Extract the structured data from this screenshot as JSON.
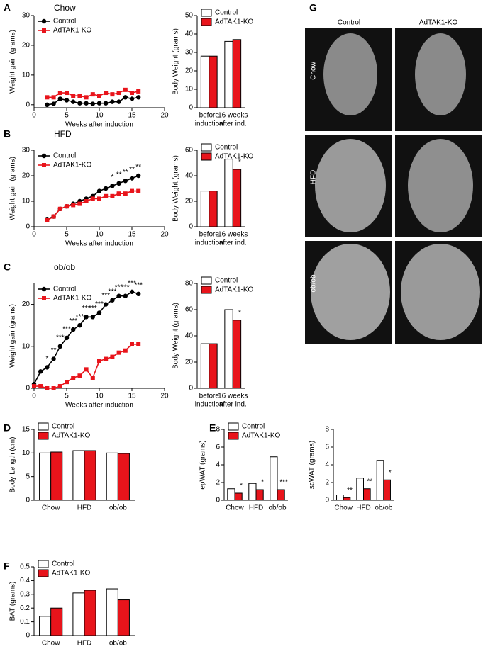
{
  "chart_data": [
    {
      "type": "line",
      "panel": "A",
      "title": "Chow",
      "xlabel": "Weeks after induction",
      "ylabel": "Weight gain (grams)",
      "x": [
        2,
        3,
        4,
        5,
        6,
        7,
        8,
        9,
        10,
        11,
        12,
        13,
        14,
        15,
        16
      ],
      "xlim": [
        0,
        20
      ],
      "xticks": [
        0,
        5,
        10,
        15,
        20
      ],
      "ylim": [
        -1,
        30
      ],
      "yticks": [
        0,
        10,
        20,
        30
      ],
      "legend": true,
      "series": [
        {
          "name": "Control",
          "color": "#000000",
          "marker": "circle",
          "values": [
            0,
            0.3,
            2,
            1.5,
            1,
            0.5,
            0.5,
            0.3,
            0.5,
            0.5,
            1,
            1,
            2.5,
            2,
            2.5
          ]
        },
        {
          "name": "AdTAK1-KO",
          "color": "#e8141b",
          "marker": "square",
          "values": [
            2.5,
            2.5,
            4,
            4,
            3,
            3,
            2.5,
            3.5,
            3,
            4,
            3.5,
            4,
            5,
            4,
            4.5
          ]
        }
      ]
    },
    {
      "type": "bar",
      "ylabel": "Body Weight (grams)",
      "categories": [
        [
          "before",
          "induction"
        ],
        [
          "16 weeks",
          "after ind."
        ]
      ],
      "ylim": [
        0,
        50
      ],
      "yticks": [
        0,
        10,
        20,
        30,
        40,
        50
      ],
      "legend": true,
      "series": [
        {
          "name": "Control",
          "color": "#ffffff",
          "values": [
            28,
            36
          ]
        },
        {
          "name": "AdTAK1-KO",
          "color": "#e8141b",
          "values": [
            28,
            37
          ]
        }
      ]
    },
    {
      "type": "line",
      "panel": "B",
      "title": "HFD",
      "xlabel": "Weeks after induction",
      "ylabel": "Weight gain (grams)",
      "x": [
        2,
        3,
        4,
        5,
        6,
        7,
        8,
        9,
        10,
        11,
        12,
        13,
        14,
        15,
        16
      ],
      "xlim": [
        0,
        20
      ],
      "xticks": [
        0,
        5,
        10,
        15,
        20
      ],
      "ylim": [
        0,
        30
      ],
      "yticks": [
        0,
        10,
        20,
        30
      ],
      "legend": true,
      "series": [
        {
          "name": "Control",
          "color": "#000000",
          "marker": "circle",
          "values": [
            3,
            4,
            7,
            8,
            9,
            10,
            11,
            12,
            14,
            15,
            16,
            17,
            18,
            19,
            20
          ],
          "significance": [
            null,
            null,
            null,
            null,
            null,
            null,
            null,
            null,
            null,
            null,
            "*",
            "**",
            "**",
            "**",
            "**"
          ]
        },
        {
          "name": "AdTAK1-KO",
          "color": "#e8141b",
          "marker": "square",
          "values": [
            2.5,
            4,
            7,
            8,
            8.5,
            9,
            10,
            11,
            11,
            12,
            12,
            13,
            13,
            14,
            14
          ]
        }
      ]
    },
    {
      "type": "bar",
      "ylabel": "Body Weight (grams)",
      "categories": [
        [
          "before",
          "induction"
        ],
        [
          "16 weeks",
          "after ind."
        ]
      ],
      "ylim": [
        0,
        60
      ],
      "yticks": [
        0,
        20,
        40,
        60
      ],
      "legend": true,
      "series": [
        {
          "name": "Control",
          "color": "#ffffff",
          "values": [
            28,
            53
          ]
        },
        {
          "name": "AdTAK1-KO",
          "color": "#e8141b",
          "values": [
            28,
            45
          ],
          "significance": [
            null,
            "*"
          ]
        }
      ]
    },
    {
      "type": "line",
      "panel": "C",
      "title": "ob/ob",
      "xlabel": "Weeks after induction",
      "ylabel": "Weight gain (grams)",
      "x": [
        0,
        1,
        2,
        3,
        4,
        5,
        6,
        7,
        8,
        9,
        10,
        11,
        12,
        13,
        14,
        15,
        16
      ],
      "xlim": [
        0,
        20
      ],
      "xticks": [
        0,
        5,
        10,
        15,
        20
      ],
      "ylim": [
        0,
        25
      ],
      "yticks": [
        0,
        10,
        20
      ],
      "legend": true,
      "series": [
        {
          "name": "Control",
          "color": "#000000",
          "marker": "circle",
          "values": [
            1,
            4,
            5,
            7,
            10,
            12,
            14,
            15,
            17,
            17,
            18,
            20,
            21,
            22,
            22,
            23,
            22.5
          ],
          "significance": [
            null,
            null,
            "*",
            "**",
            "***",
            "***",
            "***",
            "***",
            "***",
            "***",
            "***",
            "***",
            "***",
            "***",
            "***",
            "***",
            "***"
          ]
        },
        {
          "name": "AdTAK1-KO",
          "color": "#e8141b",
          "marker": "square",
          "values": [
            0.5,
            0.5,
            0,
            0,
            0.5,
            1.5,
            2.5,
            3,
            4.5,
            2.5,
            6.5,
            7,
            7.5,
            8.5,
            9,
            10.5,
            10.5
          ]
        }
      ]
    },
    {
      "type": "bar",
      "ylabel": "Body Weight (grams)",
      "categories": [
        [
          "before",
          "induction"
        ],
        [
          "16 weeks",
          "after ind."
        ]
      ],
      "ylim": [
        0,
        80
      ],
      "yticks": [
        0,
        20,
        40,
        60,
        80
      ],
      "legend": true,
      "series": [
        {
          "name": "Control",
          "color": "#ffffff",
          "values": [
            34,
            60
          ]
        },
        {
          "name": "AdTAK1-KO",
          "color": "#e8141b",
          "values": [
            34,
            52
          ],
          "significance": [
            null,
            "*"
          ]
        }
      ]
    },
    {
      "type": "bar",
      "panel": "D",
      "ylabel": "Body Length (cm)",
      "categories": [
        [
          "Chow"
        ],
        [
          "HFD"
        ],
        [
          "ob/ob"
        ]
      ],
      "ylim": [
        0,
        15
      ],
      "yticks": [
        0,
        5,
        10,
        15
      ],
      "legend": true,
      "series": [
        {
          "name": "Control",
          "color": "#ffffff",
          "values": [
            10,
            10.5,
            10
          ]
        },
        {
          "name": "AdTAK1-KO",
          "color": "#e8141b",
          "values": [
            10.2,
            10.5,
            9.9
          ]
        }
      ]
    },
    {
      "type": "bar",
      "panel": "E",
      "ylabel": "epWAT (grams)",
      "categories": [
        [
          "Chow"
        ],
        [
          "HFD"
        ],
        [
          "ob/ob"
        ]
      ],
      "ylim": [
        0,
        8
      ],
      "yticks": [
        0,
        2,
        4,
        6,
        8
      ],
      "legend": true,
      "series": [
        {
          "name": "Control",
          "color": "#ffffff",
          "values": [
            1.3,
            1.9,
            4.9
          ]
        },
        {
          "name": "AdTAK1-KO",
          "color": "#e8141b",
          "values": [
            0.8,
            1.2,
            1.2
          ],
          "significance": [
            "*",
            "*",
            "***"
          ]
        }
      ]
    },
    {
      "type": "bar",
      "ylabel": "scWAT (grams)",
      "categories": [
        [
          "Chow"
        ],
        [
          "HFD"
        ],
        [
          "ob/ob"
        ]
      ],
      "ylim": [
        0,
        8
      ],
      "yticks": [
        0,
        2,
        4,
        6,
        8
      ],
      "series": [
        {
          "name": "Control",
          "color": "#ffffff",
          "values": [
            0.6,
            2.5,
            4.5
          ]
        },
        {
          "name": "AdTAK1-KO",
          "color": "#e8141b",
          "values": [
            0.3,
            1.3,
            2.3
          ],
          "significance": [
            "**",
            "**",
            "*"
          ]
        }
      ]
    },
    {
      "type": "bar",
      "panel": "F",
      "ylabel": "BAT (grams)",
      "categories": [
        [
          "Chow"
        ],
        [
          "HFD"
        ],
        [
          "ob/ob"
        ]
      ],
      "ylim": [
        0,
        0.5
      ],
      "yticks": [
        0,
        0.1,
        0.2,
        0.3,
        0.4,
        0.5
      ],
      "legend": true,
      "series": [
        {
          "name": "Control",
          "color": "#ffffff",
          "values": [
            0.14,
            0.31,
            0.34
          ]
        },
        {
          "name": "AdTAK1-KO",
          "color": "#e8141b",
          "values": [
            0.2,
            0.33,
            0.26
          ]
        }
      ]
    }
  ],
  "figure_g": {
    "panel": "G",
    "columns": [
      "Control",
      "AdTAK1-KO"
    ],
    "rows": [
      "Chow",
      "HFD",
      "ob/ob"
    ]
  }
}
